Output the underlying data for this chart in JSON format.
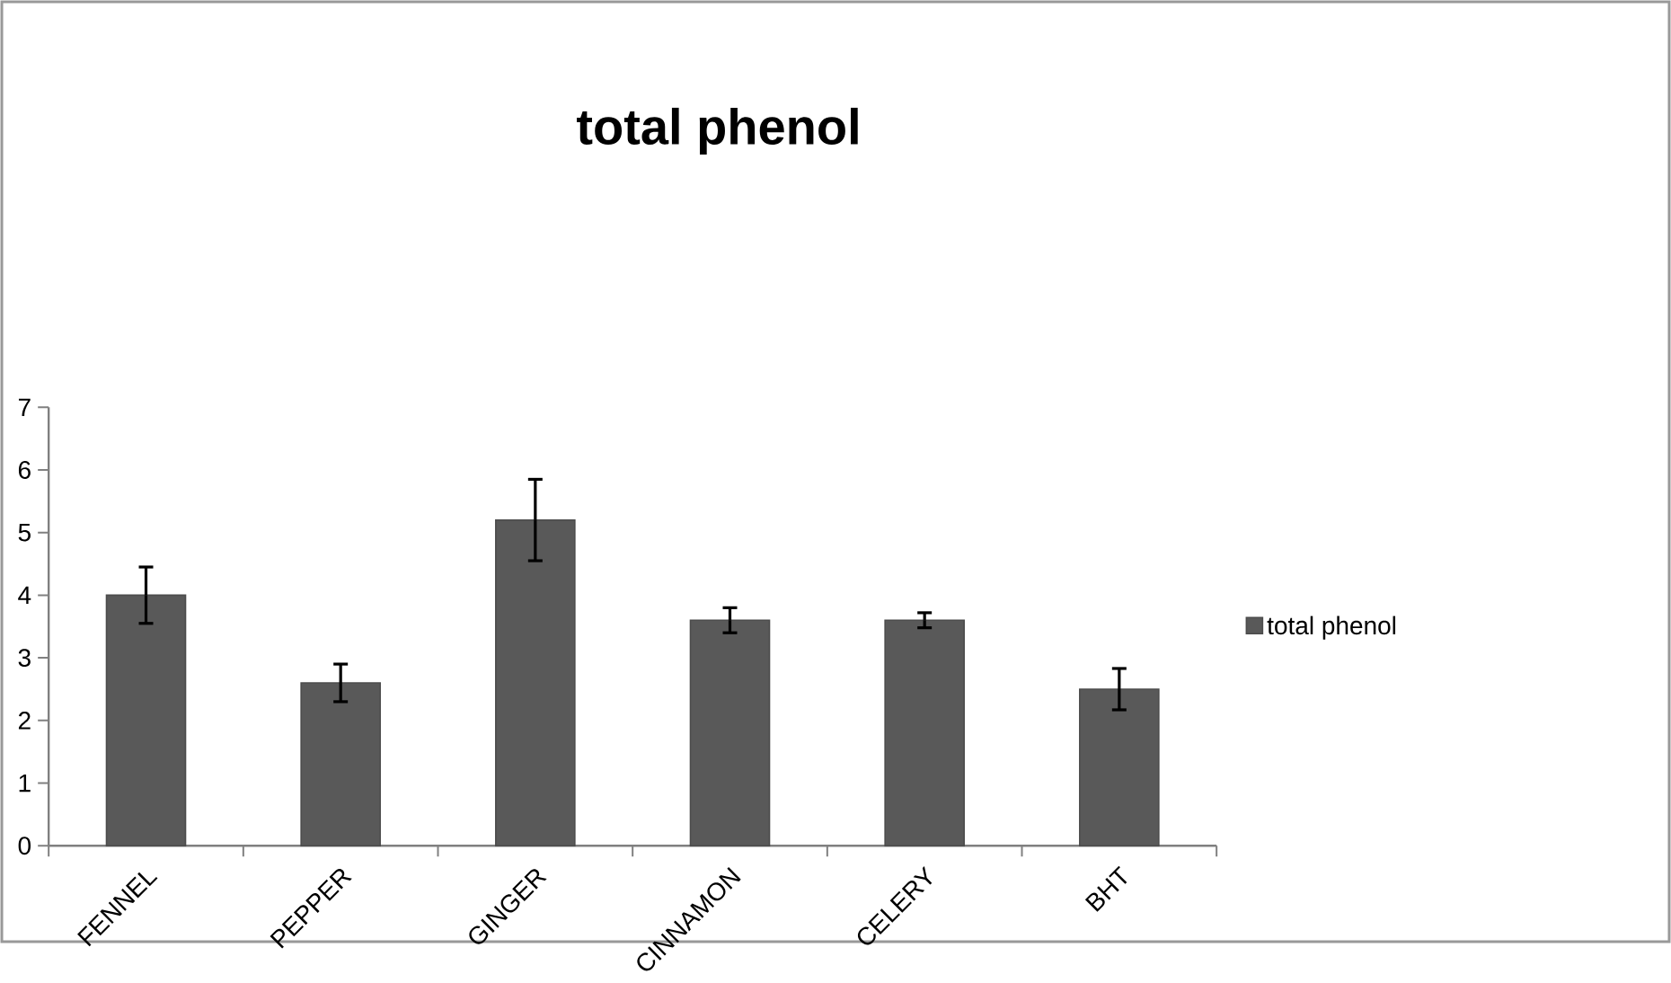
{
  "chart_data": {
    "type": "bar",
    "title": "total phenol",
    "categories": [
      "FENNEL",
      "PEPPER",
      "GINGER",
      "CINNAMON",
      "CELERY",
      "BHT"
    ],
    "series": [
      {
        "name": "total phenol",
        "color": "#595959",
        "values": [
          4.0,
          2.6,
          5.2,
          3.6,
          3.6,
          2.5
        ],
        "errors": [
          0.45,
          0.3,
          0.65,
          0.2,
          0.12,
          0.33
        ]
      }
    ],
    "ylim": [
      0,
      7
    ],
    "yticks": [
      0,
      1,
      2,
      3,
      4,
      5,
      6,
      7
    ],
    "grid": false,
    "legend": "right"
  }
}
